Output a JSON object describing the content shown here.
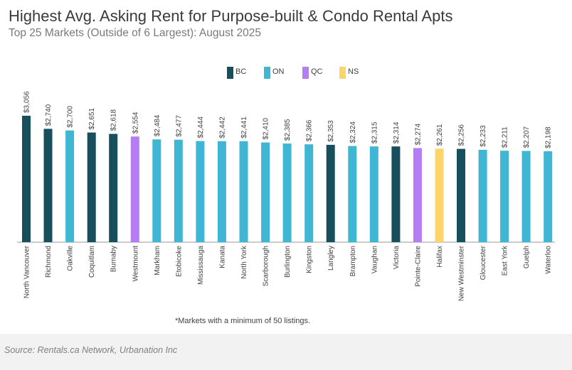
{
  "colors": {
    "BC": "#174f5c",
    "ON": "#3fb6d3",
    "QC": "#b57cf4",
    "NS": "#fcd46c",
    "axis": "#999999"
  },
  "legend": [
    {
      "key": "BC",
      "label": "BC"
    },
    {
      "key": "ON",
      "label": "ON"
    },
    {
      "key": "QC",
      "label": "QC"
    },
    {
      "key": "NS",
      "label": "NS"
    }
  ],
  "footnote": "*Markets with a minimum of 50 listings.",
  "source": "Source: Rentals.ca Network, Urbanation Inc",
  "chart_data": {
    "type": "bar",
    "title": "Highest Avg. Asking Rent for Purpose-built & Condo Rental Apts",
    "subtitle": "Top 25 Markets (Outside of 6 Largest): August 2025",
    "categories": [
      "North Vancouver",
      "Richmond",
      "Oakville",
      "Coquitlam",
      "Burnaby",
      "Westmount",
      "Markham",
      "Etobicoke",
      "Mississauga",
      "Kanata",
      "North York",
      "Scarborough",
      "Burlington",
      "Kingston",
      "Langley",
      "Brampton",
      "Vaughan",
      "Victoria",
      "Pointe-Claire",
      "Halifax",
      "New Westminster",
      "Gloucester",
      "East York",
      "Guelph",
      "Waterloo"
    ],
    "values": [
      3056,
      2740,
      2700,
      2651,
      2618,
      2554,
      2484,
      2477,
      2444,
      2442,
      2441,
      2410,
      2385,
      2366,
      2353,
      2324,
      2315,
      2314,
      2274,
      2261,
      2256,
      2233,
      2211,
      2207,
      2198
    ],
    "value_labels": [
      "$3,056",
      "$2,740",
      "$2,700",
      "$2,651",
      "$2,618",
      "$2,554",
      "$2,484",
      "$2,477",
      "$2,444",
      "$2,442",
      "$2,441",
      "$2,410",
      "$2,385",
      "$2,366",
      "$2,353",
      "$2,324",
      "$2,315",
      "$2,314",
      "$2,274",
      "$2,261",
      "$2,256",
      "$2,233",
      "$2,211",
      "$2,207",
      "$2,198"
    ],
    "provinces": [
      "BC",
      "BC",
      "ON",
      "BC",
      "BC",
      "QC",
      "ON",
      "ON",
      "ON",
      "ON",
      "ON",
      "ON",
      "ON",
      "ON",
      "BC",
      "ON",
      "ON",
      "BC",
      "QC",
      "NS",
      "BC",
      "ON",
      "ON",
      "ON",
      "ON"
    ],
    "ylim": [
      0,
      3056
    ],
    "grid": false,
    "legend_position": "top-center"
  }
}
